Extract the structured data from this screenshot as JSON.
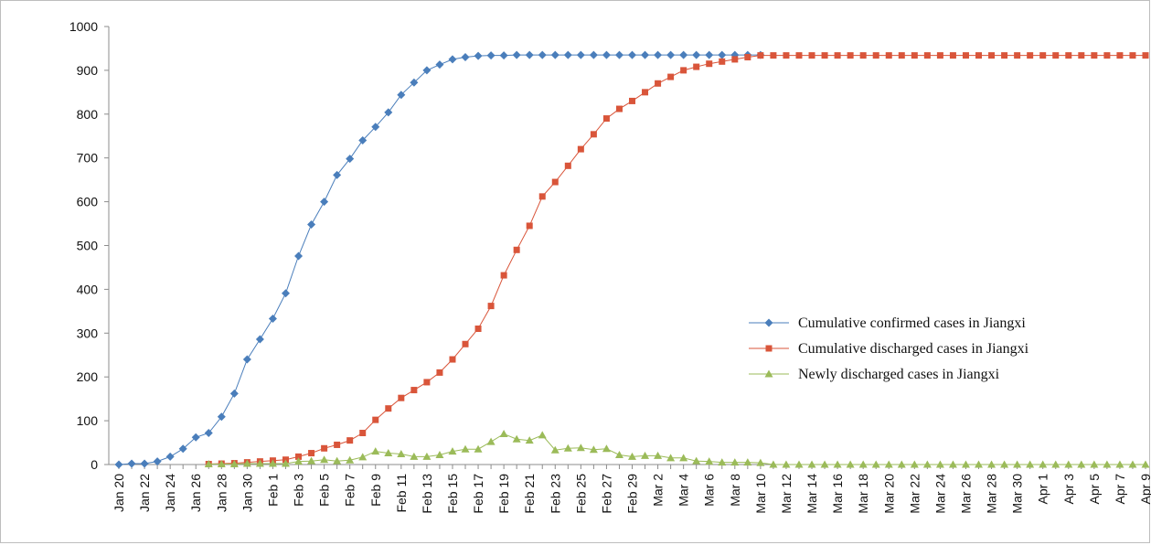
{
  "chart_data": {
    "type": "line",
    "ylim": [
      0,
      1000
    ],
    "yticks": [
      0,
      100,
      200,
      300,
      400,
      500,
      600,
      700,
      800,
      900,
      1000
    ],
    "xlabels": [
      "Jan 20",
      "Jan 22",
      "Jan 24",
      "Jan 26",
      "Jan 28",
      "Jan 30",
      "Feb 1",
      "Feb 3",
      "Feb 5",
      "Feb 7",
      "Feb 9",
      "Feb 11",
      "Feb 13",
      "Feb 15",
      "Feb 17",
      "Feb 19",
      "Feb 21",
      "Feb 23",
      "Feb 25",
      "Feb 27",
      "Feb 29",
      "Mar 2",
      "Mar 4",
      "Mar 6",
      "Mar 8",
      "Mar 10",
      "Mar 12",
      "Mar 14",
      "Mar 16",
      "Mar 18",
      "Mar 20",
      "Mar 22",
      "Mar 24",
      "Mar 26",
      "Mar 28",
      "Mar 30",
      "Apr 1",
      "Apr 3",
      "Apr 5",
      "Apr 7",
      "Apr 9"
    ],
    "x_start": "Jan 20",
    "x_end": "Apr 9",
    "grid": false,
    "legend_position": "right",
    "series": [
      {
        "name": "Cumulative confirmed cases in Jiangxi",
        "color": "#4a7ebb",
        "marker": "diamond",
        "start": "Jan 20",
        "values": [
          0,
          2,
          2,
          7,
          18,
          36,
          62,
          72,
          109,
          162,
          240,
          286,
          333,
          391,
          476,
          548,
          600,
          661,
          698,
          740,
          771,
          804,
          844,
          872,
          900,
          913,
          925,
          930,
          933,
          934,
          934,
          935,
          935,
          935,
          935,
          935,
          935,
          935,
          935,
          935,
          935,
          935,
          935,
          935,
          935,
          935,
          935,
          935,
          935,
          935,
          935
        ]
      },
      {
        "name": "Cumulative discharged cases in Jiangxi",
        "color": "#d9553a",
        "marker": "square",
        "start": "Jan 27",
        "values": [
          1,
          2,
          3,
          5,
          7,
          9,
          11,
          18,
          26,
          37,
          45,
          55,
          72,
          102,
          128,
          152,
          170,
          188,
          210,
          240,
          275,
          310,
          362,
          432,
          490,
          545,
          612,
          645,
          682,
          720,
          754,
          790,
          812,
          830,
          850,
          870,
          885,
          900,
          908,
          915,
          920,
          925,
          930,
          934,
          934,
          934,
          934,
          934,
          934,
          934,
          934,
          934,
          934,
          934,
          934,
          934,
          934,
          934,
          934,
          934,
          934,
          934,
          934,
          934,
          934,
          934,
          934,
          934,
          934,
          934,
          934,
          934,
          934,
          934
        ]
      },
      {
        "name": "Newly discharged cases in Jiangxi",
        "color": "#9bbb59",
        "marker": "triangle",
        "start": "Jan 27",
        "values": [
          1,
          1,
          1,
          2,
          2,
          2,
          2,
          7,
          8,
          11,
          8,
          10,
          17,
          30,
          26,
          24,
          18,
          18,
          22,
          30,
          35,
          35,
          52,
          70,
          58,
          55,
          67,
          33,
          37,
          38,
          34,
          36,
          22,
          18,
          20,
          20,
          15,
          15,
          8,
          7,
          5,
          5,
          5,
          4,
          0,
          0,
          0,
          0,
          0,
          0,
          0,
          0,
          0,
          0,
          0,
          0,
          0,
          0,
          0,
          0,
          0,
          0,
          0,
          0,
          0,
          0,
          0,
          0,
          0,
          0,
          0,
          0,
          0,
          0
        ]
      }
    ]
  }
}
